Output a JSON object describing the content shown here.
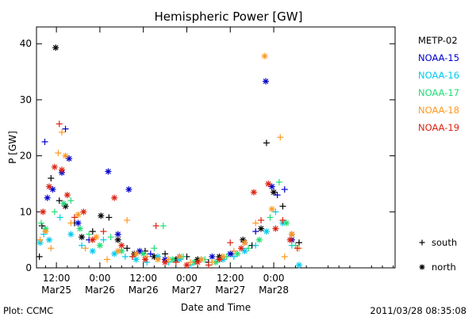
{
  "chart_data": {
    "type": "scatter",
    "title": "Hemispheric Power [GW]",
    "xlabel": "Date and Time",
    "ylabel": "P [GW]",
    "x_unit": "hours from 2011-03-25 00:00 UT",
    "xlim": [
      6.5,
      105.5
    ],
    "ylim": [
      0,
      43
    ],
    "x_ticks": [
      {
        "x": 12,
        "l1": "12:00",
        "l2": "Mar25"
      },
      {
        "x": 24,
        "l1": "0:00",
        "l2": "Mar26"
      },
      {
        "x": 36,
        "l1": "12:00",
        "l2": "Mar26"
      },
      {
        "x": 48,
        "l1": "0:00",
        "l2": "Mar27"
      },
      {
        "x": 60,
        "l1": "12:00",
        "l2": "Mar27"
      },
      {
        "x": 72,
        "l1": "0:00",
        "l2": "Mar28"
      }
    ],
    "y_ticks": [
      0,
      10,
      20,
      30,
      40
    ],
    "marker_legend": [
      {
        "symbol": "+",
        "label": "south"
      },
      {
        "symbol": "*",
        "label": "north"
      }
    ],
    "series": [
      {
        "name": "METP-02",
        "color": "#000000",
        "points": [
          {
            "x": 7.3,
            "y": 2.0,
            "m": "+"
          },
          {
            "x": 8.0,
            "y": 7.5,
            "m": "+"
          },
          {
            "x": 10.5,
            "y": 16.0,
            "m": "+"
          },
          {
            "x": 11.8,
            "y": 39.3,
            "m": "*"
          },
          {
            "x": 12.8,
            "y": 12.0,
            "m": "+"
          },
          {
            "x": 14.5,
            "y": 11.0,
            "m": "*"
          },
          {
            "x": 17.0,
            "y": 8.0,
            "m": "+"
          },
          {
            "x": 19.0,
            "y": 5.5,
            "m": "*"
          },
          {
            "x": 22.0,
            "y": 6.5,
            "m": "+"
          },
          {
            "x": 24.3,
            "y": 9.3,
            "m": "*"
          },
          {
            "x": 26.5,
            "y": 9.0,
            "m": "+"
          },
          {
            "x": 29.0,
            "y": 5.0,
            "m": "*"
          },
          {
            "x": 31.5,
            "y": 3.5,
            "m": "+"
          },
          {
            "x": 33.5,
            "y": 2.5,
            "m": "*"
          },
          {
            "x": 36.5,
            "y": 3.0,
            "m": "+"
          },
          {
            "x": 39.0,
            "y": 2.0,
            "m": "*"
          },
          {
            "x": 42.0,
            "y": 2.5,
            "m": "+"
          },
          {
            "x": 45.0,
            "y": 1.5,
            "m": "*"
          },
          {
            "x": 48.0,
            "y": 2.0,
            "m": "+"
          },
          {
            "x": 51.0,
            "y": 1.5,
            "m": "*"
          },
          {
            "x": 54.0,
            "y": 1.0,
            "m": "+"
          },
          {
            "x": 57.0,
            "y": 2.0,
            "m": "*"
          },
          {
            "x": 60.5,
            "y": 2.5,
            "m": "+"
          },
          {
            "x": 63.5,
            "y": 5.0,
            "m": "*"
          },
          {
            "x": 66.0,
            "y": 4.0,
            "m": "+"
          },
          {
            "x": 68.5,
            "y": 7.0,
            "m": "*"
          },
          {
            "x": 70.0,
            "y": 22.3,
            "m": "+"
          },
          {
            "x": 72.0,
            "y": 13.5,
            "m": "*"
          },
          {
            "x": 74.5,
            "y": 11.0,
            "m": "+"
          },
          {
            "x": 77.0,
            "y": 6.0,
            "m": "*"
          },
          {
            "x": 79.0,
            "y": 4.5,
            "m": "+"
          }
        ]
      },
      {
        "name": "NOAA-15",
        "color": "#0000cc",
        "points": [
          {
            "x": 8.8,
            "y": 22.5,
            "m": "+"
          },
          {
            "x": 9.5,
            "y": 12.5,
            "m": "*"
          },
          {
            "x": 11.0,
            "y": 14.0,
            "m": "*"
          },
          {
            "x": 13.5,
            "y": 17.0,
            "m": "*"
          },
          {
            "x": 14.5,
            "y": 24.8,
            "m": "+"
          },
          {
            "x": 15.5,
            "y": 19.5,
            "m": "*"
          },
          {
            "x": 18.0,
            "y": 8.0,
            "m": "*"
          },
          {
            "x": 21.0,
            "y": 5.0,
            "m": "+"
          },
          {
            "x": 26.3,
            "y": 17.2,
            "m": "*"
          },
          {
            "x": 29.0,
            "y": 6.0,
            "m": "*"
          },
          {
            "x": 32.0,
            "y": 14.0,
            "m": "*"
          },
          {
            "x": 35.0,
            "y": 3.0,
            "m": "*"
          },
          {
            "x": 38.0,
            "y": 2.5,
            "m": "+"
          },
          {
            "x": 42.0,
            "y": 1.5,
            "m": "*"
          },
          {
            "x": 46.0,
            "y": 2.0,
            "m": "*"
          },
          {
            "x": 50.0,
            "y": 1.0,
            "m": "+"
          },
          {
            "x": 55.0,
            "y": 2.0,
            "m": "*"
          },
          {
            "x": 60.0,
            "y": 2.5,
            "m": "*"
          },
          {
            "x": 64.0,
            "y": 4.5,
            "m": "*"
          },
          {
            "x": 67.0,
            "y": 6.5,
            "m": "+"
          },
          {
            "x": 69.8,
            "y": 33.3,
            "m": "*"
          },
          {
            "x": 71.5,
            "y": 14.5,
            "m": "*"
          },
          {
            "x": 73.0,
            "y": 13.0,
            "m": "+"
          },
          {
            "x": 75.0,
            "y": 14.0,
            "m": "+"
          },
          {
            "x": 77.0,
            "y": 5.0,
            "m": "*"
          }
        ]
      },
      {
        "name": "NOAA-16",
        "color": "#00ccee",
        "points": [
          {
            "x": 7.5,
            "y": 4.5,
            "m": "*"
          },
          {
            "x": 8.5,
            "y": 6.0,
            "m": "+"
          },
          {
            "x": 10.0,
            "y": 5.0,
            "m": "*"
          },
          {
            "x": 13.0,
            "y": 9.0,
            "m": "+"
          },
          {
            "x": 16.0,
            "y": 6.0,
            "m": "*"
          },
          {
            "x": 19.0,
            "y": 4.0,
            "m": "+"
          },
          {
            "x": 22.0,
            "y": 3.0,
            "m": "*"
          },
          {
            "x": 25.0,
            "y": 5.0,
            "m": "+"
          },
          {
            "x": 28.0,
            "y": 2.5,
            "m": "*"
          },
          {
            "x": 31.0,
            "y": 2.0,
            "m": "+"
          },
          {
            "x": 34.0,
            "y": 1.5,
            "m": "*"
          },
          {
            "x": 37.0,
            "y": 1.0,
            "m": "+"
          },
          {
            "x": 40.0,
            "y": 2.0,
            "m": "*"
          },
          {
            "x": 43.0,
            "y": 1.0,
            "m": "+"
          },
          {
            "x": 46.0,
            "y": 1.5,
            "m": "*"
          },
          {
            "x": 49.0,
            "y": 0.5,
            "m": "+"
          },
          {
            "x": 52.0,
            "y": 1.5,
            "m": "*"
          },
          {
            "x": 55.0,
            "y": 1.0,
            "m": "+"
          },
          {
            "x": 58.0,
            "y": 1.5,
            "m": "*"
          },
          {
            "x": 61.0,
            "y": 2.0,
            "m": "+"
          },
          {
            "x": 64.0,
            "y": 3.0,
            "m": "*"
          },
          {
            "x": 67.0,
            "y": 4.0,
            "m": "+"
          },
          {
            "x": 70.0,
            "y": 6.5,
            "m": "*"
          },
          {
            "x": 72.5,
            "y": 10.0,
            "m": "+"
          },
          {
            "x": 74.5,
            "y": 8.0,
            "m": "*"
          },
          {
            "x": 77.0,
            "y": 4.0,
            "m": "+"
          },
          {
            "x": 79.0,
            "y": 0.5,
            "m": "*"
          }
        ]
      },
      {
        "name": "NOAA-17",
        "color": "#22dd77",
        "points": [
          {
            "x": 7.8,
            "y": 8.0,
            "m": "+"
          },
          {
            "x": 9.0,
            "y": 7.0,
            "m": "*"
          },
          {
            "x": 11.5,
            "y": 10.0,
            "m": "+"
          },
          {
            "x": 14.0,
            "y": 11.5,
            "m": "*"
          },
          {
            "x": 16.0,
            "y": 12.0,
            "m": "+"
          },
          {
            "x": 18.5,
            "y": 7.0,
            "m": "*"
          },
          {
            "x": 21.0,
            "y": 6.0,
            "m": "+"
          },
          {
            "x": 24.0,
            "y": 4.0,
            "m": "*"
          },
          {
            "x": 27.0,
            "y": 5.5,
            "m": "+"
          },
          {
            "x": 30.0,
            "y": 3.0,
            "m": "*"
          },
          {
            "x": 33.0,
            "y": 2.0,
            "m": "+"
          },
          {
            "x": 36.0,
            "y": 2.5,
            "m": "*"
          },
          {
            "x": 39.0,
            "y": 3.5,
            "m": "+"
          },
          {
            "x": 41.5,
            "y": 7.5,
            "m": "+"
          },
          {
            "x": 44.0,
            "y": 1.5,
            "m": "*"
          },
          {
            "x": 47.0,
            "y": 2.0,
            "m": "+"
          },
          {
            "x": 50.0,
            "y": 1.0,
            "m": "*"
          },
          {
            "x": 53.0,
            "y": 1.5,
            "m": "+"
          },
          {
            "x": 56.0,
            "y": 1.0,
            "m": "*"
          },
          {
            "x": 59.0,
            "y": 2.0,
            "m": "+"
          },
          {
            "x": 62.0,
            "y": 2.5,
            "m": "*"
          },
          {
            "x": 65.0,
            "y": 3.5,
            "m": "+"
          },
          {
            "x": 68.0,
            "y": 5.0,
            "m": "*"
          },
          {
            "x": 71.0,
            "y": 9.0,
            "m": "+"
          },
          {
            "x": 73.5,
            "y": 15.3,
            "m": "+"
          },
          {
            "x": 75.5,
            "y": 8.0,
            "m": "*"
          },
          {
            "x": 78.0,
            "y": 4.0,
            "m": "+"
          }
        ]
      },
      {
        "name": "NOAA-18",
        "color": "#ff9922",
        "points": [
          {
            "x": 7.5,
            "y": 5.0,
            "m": "+"
          },
          {
            "x": 9.0,
            "y": 6.5,
            "m": "*"
          },
          {
            "x": 10.5,
            "y": 3.5,
            "m": "+"
          },
          {
            "x": 12.5,
            "y": 20.5,
            "m": "+"
          },
          {
            "x": 13.5,
            "y": 24.2,
            "m": "+"
          },
          {
            "x": 14.5,
            "y": 20.0,
            "m": "*"
          },
          {
            "x": 16.0,
            "y": 8.0,
            "m": "+"
          },
          {
            "x": 18.0,
            "y": 9.5,
            "m": "*"
          },
          {
            "x": 20.0,
            "y": 3.5,
            "m": "+"
          },
          {
            "x": 23.0,
            "y": 5.5,
            "m": "*"
          },
          {
            "x": 26.0,
            "y": 1.5,
            "m": "+"
          },
          {
            "x": 29.0,
            "y": 3.0,
            "m": "*"
          },
          {
            "x": 31.5,
            "y": 8.5,
            "m": "+"
          },
          {
            "x": 34.0,
            "y": 2.5,
            "m": "*"
          },
          {
            "x": 37.0,
            "y": 2.0,
            "m": "+"
          },
          {
            "x": 40.0,
            "y": 1.5,
            "m": "*"
          },
          {
            "x": 43.0,
            "y": 1.5,
            "m": "+"
          },
          {
            "x": 46.0,
            "y": 2.0,
            "m": "*"
          },
          {
            "x": 49.0,
            "y": 1.0,
            "m": "+"
          },
          {
            "x": 52.0,
            "y": 1.5,
            "m": "*"
          },
          {
            "x": 55.0,
            "y": 1.0,
            "m": "+"
          },
          {
            "x": 58.0,
            "y": 2.0,
            "m": "*"
          },
          {
            "x": 61.0,
            "y": 3.0,
            "m": "+"
          },
          {
            "x": 64.0,
            "y": 4.5,
            "m": "*"
          },
          {
            "x": 67.0,
            "y": 8.0,
            "m": "+"
          },
          {
            "x": 69.5,
            "y": 37.8,
            "m": "*"
          },
          {
            "x": 71.5,
            "y": 10.5,
            "m": "*"
          },
          {
            "x": 73.8,
            "y": 23.3,
            "m": "+"
          },
          {
            "x": 75.0,
            "y": 2.0,
            "m": "+"
          },
          {
            "x": 77.0,
            "y": 6.0,
            "m": "*"
          },
          {
            "x": 79.0,
            "y": 3.5,
            "m": "+"
          }
        ]
      },
      {
        "name": "NOAA-19",
        "color": "#dd2211",
        "points": [
          {
            "x": 8.3,
            "y": 10.0,
            "m": "*"
          },
          {
            "x": 10.0,
            "y": 14.5,
            "m": "*"
          },
          {
            "x": 11.5,
            "y": 18.0,
            "m": "*"
          },
          {
            "x": 12.8,
            "y": 25.7,
            "m": "+"
          },
          {
            "x": 13.5,
            "y": 17.5,
            "m": "*"
          },
          {
            "x": 15.0,
            "y": 13.0,
            "m": "*"
          },
          {
            "x": 17.0,
            "y": 9.0,
            "m": "+"
          },
          {
            "x": 19.5,
            "y": 10.0,
            "m": "*"
          },
          {
            "x": 22.0,
            "y": 5.0,
            "m": "*"
          },
          {
            "x": 25.0,
            "y": 6.5,
            "m": "+"
          },
          {
            "x": 28.0,
            "y": 12.5,
            "m": "*"
          },
          {
            "x": 30.0,
            "y": 4.0,
            "m": "*"
          },
          {
            "x": 33.0,
            "y": 2.0,
            "m": "+"
          },
          {
            "x": 36.5,
            "y": 1.5,
            "m": "*"
          },
          {
            "x": 39.5,
            "y": 7.5,
            "m": "+"
          },
          {
            "x": 42.0,
            "y": 1.0,
            "m": "*"
          },
          {
            "x": 45.0,
            "y": 1.0,
            "m": "+"
          },
          {
            "x": 48.0,
            "y": 0.5,
            "m": "*"
          },
          {
            "x": 51.0,
            "y": 1.0,
            "m": "*"
          },
          {
            "x": 54.0,
            "y": 0.5,
            "m": "+"
          },
          {
            "x": 57.0,
            "y": 1.5,
            "m": "*"
          },
          {
            "x": 60.0,
            "y": 4.5,
            "m": "+"
          },
          {
            "x": 63.0,
            "y": 3.5,
            "m": "*"
          },
          {
            "x": 66.5,
            "y": 13.5,
            "m": "*"
          },
          {
            "x": 68.5,
            "y": 8.5,
            "m": "+"
          },
          {
            "x": 70.5,
            "y": 15.0,
            "m": "*"
          },
          {
            "x": 72.5,
            "y": 7.0,
            "m": "*"
          },
          {
            "x": 74.5,
            "y": 8.5,
            "m": "+"
          },
          {
            "x": 76.5,
            "y": 5.0,
            "m": "*"
          },
          {
            "x": 78.5,
            "y": 3.5,
            "m": "+"
          }
        ]
      }
    ]
  },
  "footer": {
    "left": "Plot: CCMC",
    "right": "2011/03/28 08:35:08"
  }
}
